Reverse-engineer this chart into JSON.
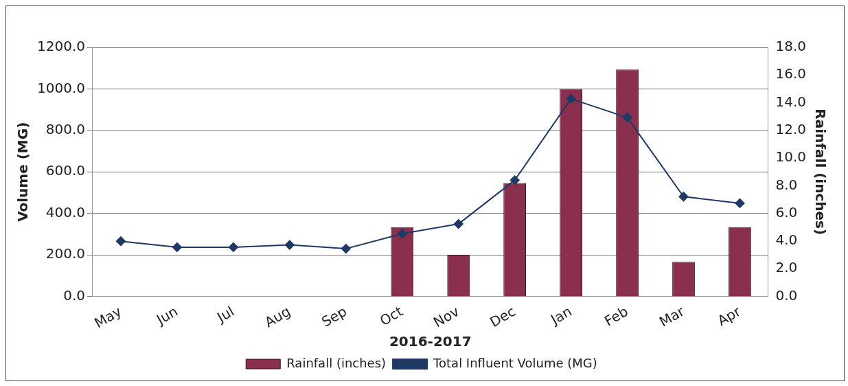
{
  "chart_data": {
    "type": "bar",
    "xlabel": "2016-2017",
    "ylabel": "Volume (MG)",
    "y2label": "Rainfall (inches)",
    "categories": [
      "May",
      "Jun",
      "Jul",
      "Aug",
      "Sep",
      "Oct",
      "Nov",
      "Dec",
      "Jan",
      "Feb",
      "Mar",
      "Apr"
    ],
    "series": [
      {
        "name": "Rainfall (inches)",
        "axis": "y2",
        "color": "#8b2f4f",
        "values": [
          0,
          0,
          0,
          0,
          0,
          5.0,
          3.0,
          8.2,
          15.0,
          16.4,
          2.5,
          5.0
        ]
      },
      {
        "name": "Total Influent Volume (MG)",
        "type": "line",
        "color": "#1f3864",
        "values": [
          266,
          237,
          237,
          248,
          230,
          302,
          349,
          560,
          952,
          862,
          481,
          449
        ]
      }
    ],
    "ylim": [
      0,
      1200
    ],
    "yticks": [
      {
        "value": 0,
        "label": "0.0"
      },
      {
        "value": 200,
        "label": "200.0"
      },
      {
        "value": 400,
        "label": "400.0"
      },
      {
        "value": 600,
        "label": "600.0"
      },
      {
        "value": 800,
        "label": "800.0"
      },
      {
        "value": 1000,
        "label": "1000.0"
      },
      {
        "value": 1200,
        "label": "1200.0"
      }
    ],
    "y2lim": [
      0,
      18
    ],
    "y2ticks": [
      {
        "value": 0,
        "label": "0.0"
      },
      {
        "value": 2,
        "label": "2.0"
      },
      {
        "value": 4,
        "label": "4.0"
      },
      {
        "value": 6,
        "label": "6.0"
      },
      {
        "value": 8,
        "label": "8.0"
      },
      {
        "value": 10,
        "label": "10.0"
      },
      {
        "value": 12,
        "label": "12.0"
      },
      {
        "value": 14,
        "label": "14.0"
      },
      {
        "value": 16,
        "label": "16.0"
      },
      {
        "value": 18,
        "label": "18.0"
      }
    ],
    "grid": "y",
    "legend": "bottom",
    "marker": "diamond",
    "line_style": "solid"
  }
}
